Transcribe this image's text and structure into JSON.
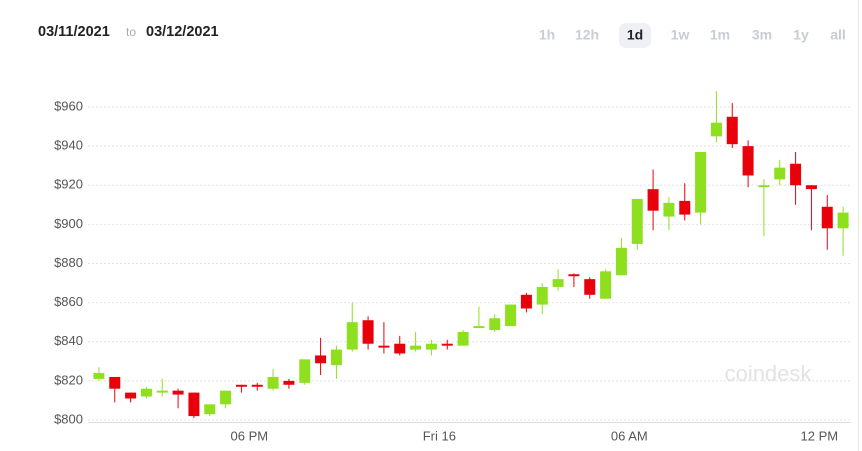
{
  "header": {
    "from": "03/11/2021",
    "to_word": "to",
    "to": "03/12/2021",
    "ranges": [
      "1h",
      "12h",
      "1d",
      "1w",
      "1m",
      "3m",
      "1y",
      "all"
    ],
    "active_range": 2
  },
  "watermark": "coindesk",
  "chart_data": {
    "type": "candlestick",
    "categories": [
      null,
      null,
      null,
      null,
      null,
      null,
      null,
      null,
      null,
      null,
      "06 PM",
      null,
      null,
      null,
      null,
      null,
      null,
      null,
      null,
      null,
      null,
      null,
      "Fri 16",
      null,
      null,
      null,
      null,
      null,
      null,
      null,
      null,
      null,
      null,
      null,
      "06 AM",
      null,
      null,
      null,
      null,
      null,
      null,
      null,
      null,
      null,
      null,
      null,
      "12 PM",
      null
    ],
    "open": [
      821,
      822,
      814,
      812,
      814,
      815,
      814,
      803,
      808,
      818,
      818,
      816,
      820,
      819,
      833,
      828,
      836,
      851,
      838,
      839,
      836,
      836,
      839,
      838,
      847,
      846,
      848,
      864,
      859,
      868,
      874.5,
      872,
      862,
      874,
      890,
      918,
      904,
      912,
      906,
      945,
      955,
      940,
      919,
      923,
      931,
      920,
      909,
      898
    ],
    "high": [
      827,
      822,
      814,
      817,
      821,
      816,
      814,
      808,
      815,
      818,
      819,
      826,
      821,
      831,
      842,
      838,
      860,
      853,
      850,
      843,
      845,
      841,
      841,
      846,
      858,
      854,
      859,
      865,
      870,
      877,
      875,
      873,
      877,
      893,
      913,
      928,
      914,
      921,
      937,
      968,
      962,
      943,
      923,
      933,
      937,
      920,
      915,
      909
    ],
    "low": [
      820,
      809,
      809,
      811,
      812,
      806,
      801,
      802,
      806,
      814,
      815,
      815,
      816,
      818,
      823,
      821,
      835,
      836,
      834,
      833,
      835,
      833,
      836,
      838,
      847,
      845,
      848,
      855,
      854,
      866,
      868,
      862,
      862,
      874,
      887,
      897,
      897,
      902,
      900,
      942,
      939,
      919,
      894,
      920,
      910,
      897,
      887,
      884
    ],
    "close": [
      824,
      816,
      811,
      816,
      815,
      813,
      802,
      808,
      815,
      817,
      817,
      822,
      818,
      831,
      829,
      836,
      850,
      839,
      837,
      834,
      838,
      839,
      838,
      845,
      848,
      852,
      859,
      857,
      868,
      872,
      873.5,
      864,
      876,
      888,
      913,
      907,
      911,
      905,
      937,
      952,
      941,
      925,
      920,
      929,
      920,
      918,
      898,
      906
    ],
    "up_color": "#8ee01e",
    "down_color": "#e8000b",
    "ylim": [
      799,
      972
    ],
    "yticks": [
      {
        "value": 800,
        "label": "$800"
      },
      {
        "value": 820,
        "label": "$820"
      },
      {
        "value": 840,
        "label": "$840"
      },
      {
        "value": 860,
        "label": "$860"
      },
      {
        "value": 880,
        "label": "$880"
      },
      {
        "value": 900,
        "label": "$900"
      },
      {
        "value": 920,
        "label": "$920"
      },
      {
        "value": 940,
        "label": "$940"
      },
      {
        "value": 960,
        "label": "$960"
      }
    ],
    "grid": true
  }
}
